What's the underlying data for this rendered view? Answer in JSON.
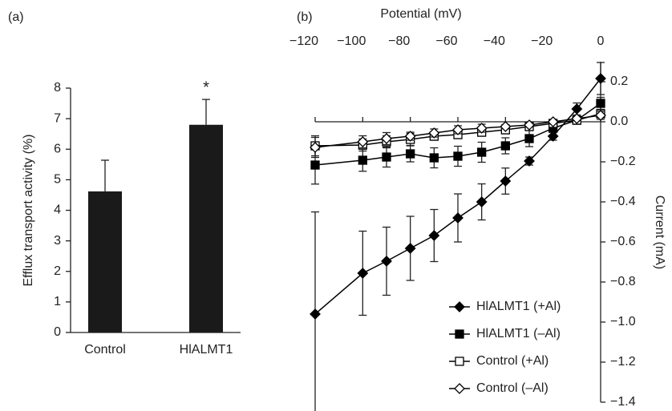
{
  "chart_data": [
    {
      "type": "bar",
      "panel_label": "(a)",
      "ylabel": "Efflux transport activity (%)",
      "categories": [
        "Control",
        "HlALMT1"
      ],
      "values": [
        4.62,
        6.8
      ],
      "errors": [
        1.02,
        0.83
      ],
      "color": "#1a1a1a",
      "ylim": [
        0,
        8
      ],
      "yticks": [
        0,
        1,
        2,
        3,
        4,
        5,
        6,
        7,
        8
      ],
      "annotations": [
        {
          "category": 1,
          "text": "*"
        }
      ]
    },
    {
      "type": "line",
      "panel_label": "(b)",
      "xlabel": "Potential (mV)",
      "ylabel": "Current (mA)",
      "x": [
        -120,
        -100,
        -90,
        -80,
        -70,
        -60,
        -50,
        -40,
        -30,
        -20,
        -10,
        0
      ],
      "xlim": [
        -120,
        0
      ],
      "xticks": [
        {
          "value": -120,
          "label": "−120"
        },
        {
          "value": -100,
          "label": "−100"
        },
        {
          "value": -80,
          "label": "−80"
        },
        {
          "value": -60,
          "label": "−60"
        },
        {
          "value": -40,
          "label": "−40"
        },
        {
          "value": -20,
          "label": "−20"
        },
        0
      ],
      "ylim": [
        -1.4,
        0.3
      ],
      "yticks": [
        0.2,
        {
          "value": 0,
          "label": "0.0"
        },
        {
          "value": -0.2,
          "label": "−0.2"
        },
        {
          "value": -0.4,
          "label": "−0.4"
        },
        {
          "value": -0.6,
          "label": "−0.6"
        },
        {
          "value": -0.8,
          "label": "−0.8"
        },
        {
          "value": -1.0,
          "label": "−1.0"
        },
        {
          "value": -1.2,
          "label": "−1.2"
        },
        {
          "value": -1.4,
          "label": "−1.4"
        }
      ],
      "legend": "lower-left",
      "series": [
        {
          "name": "HlALMT1 (+Al)",
          "color": "#000000",
          "marker": "diamond",
          "filled": true,
          "values": [
            -0.96,
            -0.756,
            -0.696,
            -0.632,
            -0.568,
            -0.48,
            -0.4,
            -0.296,
            -0.196,
            -0.072,
            0.064,
            0.216
          ],
          "errors": [
            0.51,
            0.21,
            0.17,
            0.16,
            0.13,
            0.12,
            0.09,
            0.065,
            0.02,
            0.02,
            0.03,
            0.08
          ]
        },
        {
          "name": "HlALMT1 (–Al)",
          "color": "#000000",
          "marker": "square",
          "filled": true,
          "values": [
            -0.216,
            -0.192,
            -0.176,
            -0.16,
            -0.18,
            -0.172,
            -0.152,
            -0.12,
            -0.084,
            -0.032,
            0.008,
            0.092
          ],
          "errors": [
            0.095,
            0.055,
            0.05,
            0.04,
            0.05,
            0.05,
            0.05,
            0.04,
            0.04,
            0.02,
            0.02,
            0.03
          ]
        },
        {
          "name": "Control (+Al)",
          "color": "#000000",
          "marker": "square",
          "filled": false,
          "values": [
            -0.12,
            -0.116,
            -0.1,
            -0.088,
            -0.072,
            -0.064,
            -0.052,
            -0.04,
            -0.024,
            -0.008,
            0.008,
            0.04
          ],
          "errors": [
            0.05,
            0.03,
            0.03,
            0.03,
            0.02,
            0.02,
            0.02,
            0.02,
            0.01,
            0.01,
            0.01,
            0.02
          ]
        },
        {
          "name": "Control (–Al)",
          "color": "#000000",
          "marker": "diamond",
          "filled": false,
          "values": [
            -0.128,
            -0.1,
            -0.084,
            -0.072,
            -0.056,
            -0.04,
            -0.032,
            -0.024,
            -0.016,
            0,
            0.016,
            0.032
          ],
          "errors": [
            0.05,
            0.03,
            0.03,
            0.02,
            0.02,
            0.02,
            0.02,
            0.01,
            0.01,
            0.01,
            0.01,
            0.02
          ]
        }
      ]
    }
  ]
}
